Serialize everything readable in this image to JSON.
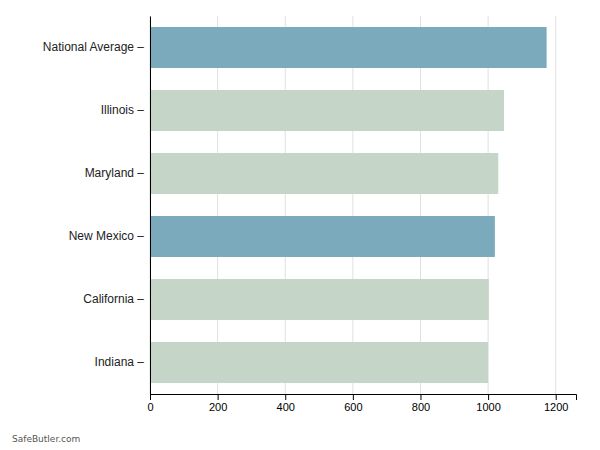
{
  "chart_data": {
    "type": "bar",
    "orientation": "horizontal",
    "categories": [
      "Indiana –",
      "California –",
      "New Mexico –",
      "Maryland –",
      "Illinois –",
      "National Average –"
    ],
    "values": [
      1000,
      1002,
      1020,
      1030,
      1047,
      1173
    ],
    "colors": [
      "#c5d5c8",
      "#c5d5c8",
      "#7aaabb",
      "#c5d5c8",
      "#c5d5c8",
      "#7aaabb"
    ],
    "xlim": [
      0,
      1260
    ],
    "xticks": [
      0,
      200,
      400,
      600,
      800,
      1000,
      1200
    ],
    "grid": true,
    "annotations": [
      "SafeButler.com"
    ]
  }
}
